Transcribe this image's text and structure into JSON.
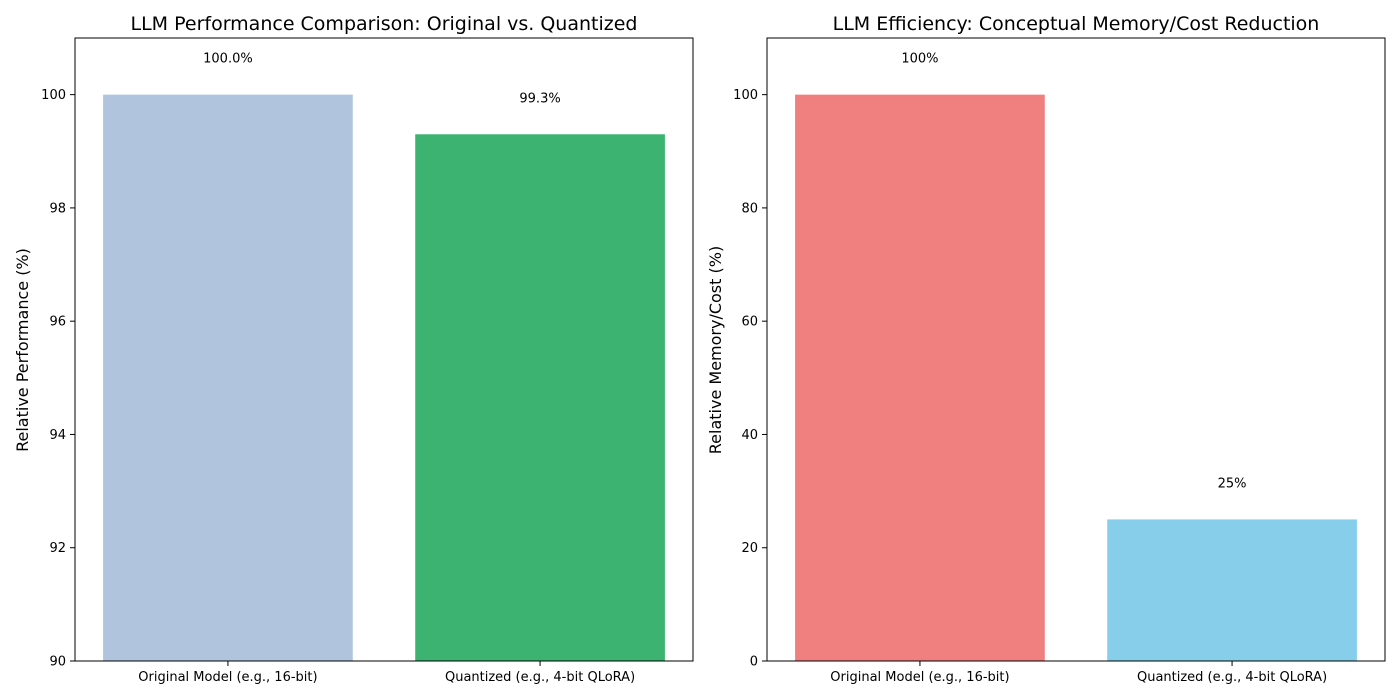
{
  "chart_data": [
    {
      "type": "bar",
      "title": "LLM Performance Comparison: Original vs. Quantized",
      "xlabel": "",
      "ylabel": "Relative Performance (%)",
      "categories": [
        "Original Model (e.g., 16-bit)",
        "Quantized (e.g., 4-bit QLoRA)"
      ],
      "values": [
        100.0,
        99.3
      ],
      "value_labels": [
        "100.0%",
        "99.3%"
      ],
      "colors": [
        "#b0c4de",
        "#3cb371"
      ],
      "ylim": [
        90,
        101
      ],
      "yticks": [
        90,
        92,
        94,
        96,
        98,
        100
      ],
      "grid": false,
      "legend": "none"
    },
    {
      "type": "bar",
      "title": "LLM Efficiency: Conceptual Memory/Cost Reduction",
      "xlabel": "",
      "ylabel": "Relative Memory/Cost (%)",
      "categories": [
        "Original Model (e.g., 16-bit)",
        "Quantized (e.g., 4-bit QLoRA)"
      ],
      "values": [
        100,
        25
      ],
      "value_labels": [
        "100%",
        "25%"
      ],
      "colors": [
        "#f08080",
        "#87ceeb"
      ],
      "ylim": [
        0,
        110
      ],
      "yticks": [
        0,
        20,
        40,
        60,
        80,
        100
      ],
      "grid": false,
      "legend": "none"
    }
  ]
}
